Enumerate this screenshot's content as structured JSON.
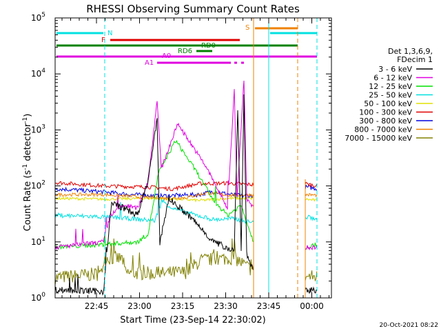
{
  "chart_data": {
    "type": "line",
    "title": "RHESSI Observing Summary Count Rates",
    "xlabel": "Start Time (23-Sep-14 22:30:02)",
    "ylabel_main": "Count Rate (s",
    "ylabel_sup1": "-1",
    "ylabel_mid": " detector",
    "ylabel_sup2": "-1",
    "ylabel_end": ")",
    "y_scale": "log",
    "ylim": [
      1,
      100000
    ],
    "xlim": [
      0,
      100
    ],
    "x_tick_labels": [
      "22:45",
      "23:00",
      "23:15",
      "23:30",
      "23:45",
      "00:00"
    ],
    "y_tick_base": "10",
    "y_tick_exponents": [
      "0",
      "1",
      "2",
      "3",
      "4",
      "5"
    ],
    "legend_header": [
      "Det 1,3,6,9,",
      "FDecim 1"
    ],
    "legend_position": "right",
    "series": [
      {
        "name": "3 - 6 keV",
        "color": "#000000"
      },
      {
        "name": "6 - 12 keV",
        "color": "#e000e0"
      },
      {
        "name": "12 - 25 keV",
        "color": "#00e000"
      },
      {
        "name": "25 - 50 keV",
        "color": "#00e0e0"
      },
      {
        "name": "50 - 100 keV",
        "color": "#e0e000"
      },
      {
        "name": "100 - 300 keV",
        "color": "#e00000"
      },
      {
        "name": "300 - 800 keV",
        "color": "#0000e0"
      },
      {
        "name": "800 - 7000 keV",
        "color": "#f08000"
      },
      {
        "name": "7000 - 15000 keV",
        "color": "#808000"
      }
    ],
    "flag_labels": {
      "N": "N",
      "F": "F",
      "S": "S",
      "RD0": "RD0",
      "RD6": "RD6",
      "A0": "A0",
      "A1": "A1"
    },
    "timestamp": "20-Oct-2021 08:22"
  }
}
